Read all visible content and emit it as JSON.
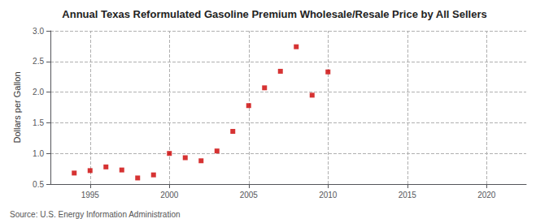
{
  "chart_data": {
    "type": "scatter",
    "title": "Annual Texas Reformulated Gasoline Premium Wholesale/Resale Price by All Sellers",
    "ylabel": "Dollars per Gallon",
    "source": "Source: U.S. Energy Information Administration",
    "x": [
      1994,
      1995,
      1996,
      1997,
      1998,
      1999,
      2000,
      2001,
      2002,
      2003,
      2004,
      2005,
      2006,
      2007,
      2008,
      2009,
      2010
    ],
    "values": [
      0.68,
      0.72,
      0.78,
      0.73,
      0.6,
      0.65,
      1.0,
      0.93,
      0.88,
      1.04,
      1.36,
      1.78,
      2.07,
      2.34,
      2.74,
      1.95,
      2.33
    ],
    "color": "#cc0000",
    "marker": "square",
    "xlim": [
      1992.5,
      2022.5
    ],
    "ylim": [
      0.5,
      3.0
    ],
    "xticks": [
      1995,
      2000,
      2005,
      2010,
      2015,
      2020
    ],
    "yticks": [
      0.5,
      {
        "value": 1.0,
        "label": "1.0"
      },
      1.5,
      {
        "value": 2.0,
        "label": "2.0"
      },
      2.5,
      {
        "value": 3.0,
        "label": "3.0"
      }
    ],
    "grid": true
  }
}
